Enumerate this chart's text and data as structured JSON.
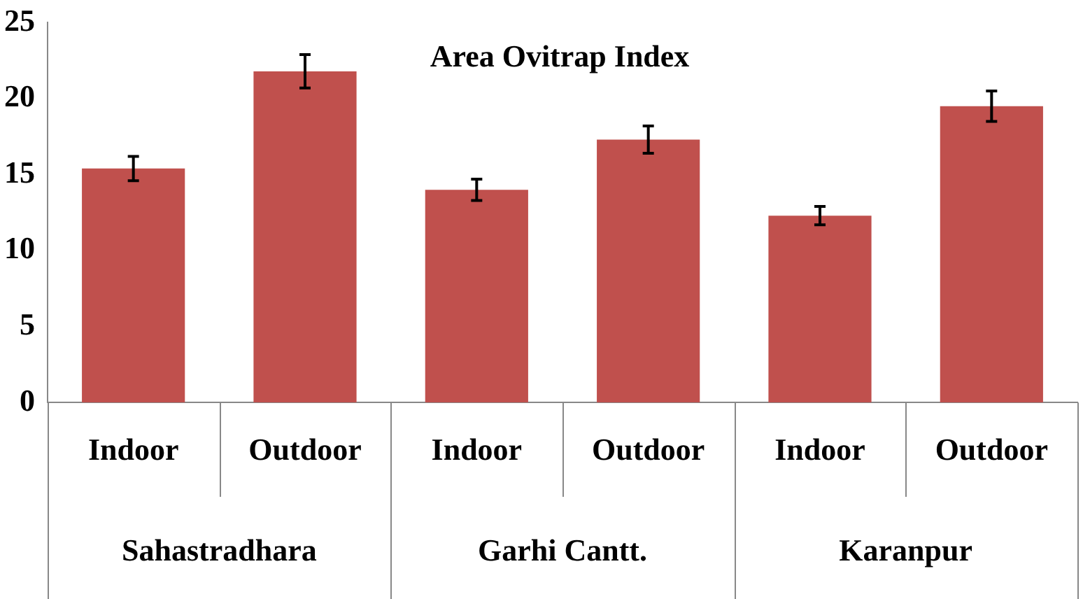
{
  "chart_data": {
    "type": "bar",
    "title": "Area Ovitrap Index",
    "categories": [
      "Indoor",
      "Outdoor",
      "Indoor",
      "Outdoor",
      "Indoor",
      "Outdoor"
    ],
    "values": [
      15.4,
      21.8,
      14.0,
      17.3,
      12.3,
      19.5
    ],
    "errors": [
      0.8,
      1.1,
      0.7,
      0.9,
      0.6,
      1.0
    ],
    "color": "#c0504d",
    "annotations": [
      "Sahastradhara",
      "Garhi Cantt.",
      "Karanpur"
    ],
    "ylim": [
      0,
      25
    ],
    "yticks": [
      0,
      5,
      10,
      15,
      20,
      25
    ],
    "grid": false,
    "legend": false
  }
}
